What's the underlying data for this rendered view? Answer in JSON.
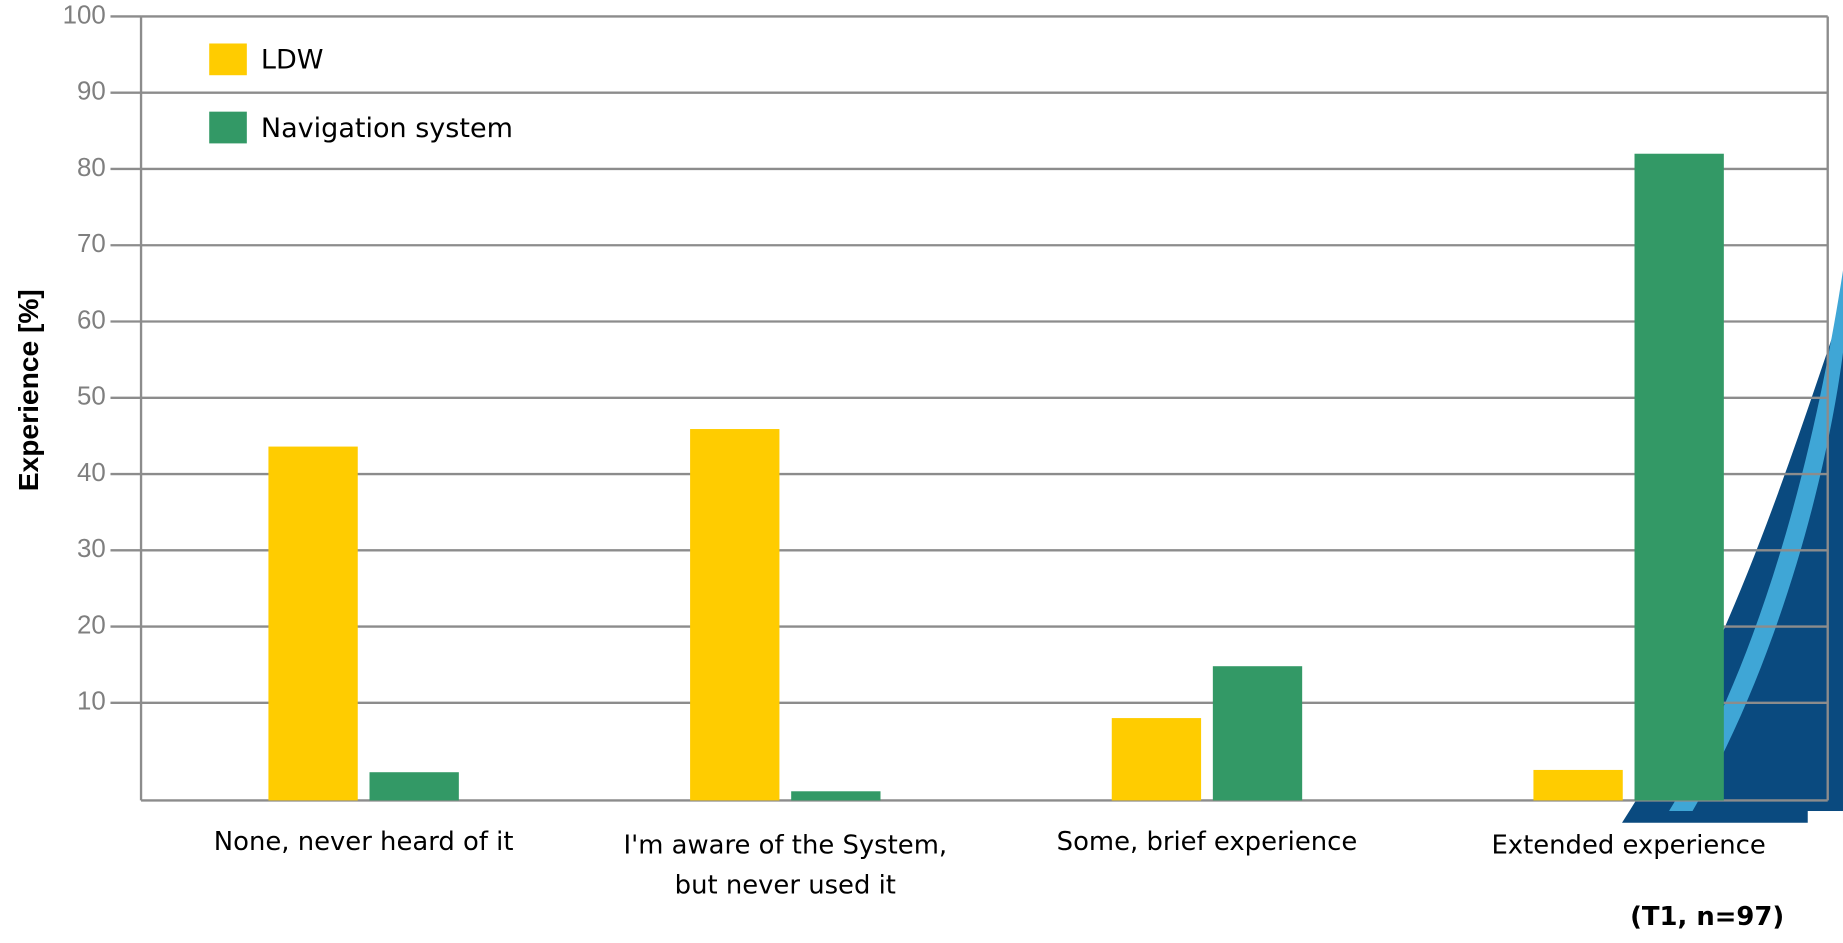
{
  "chart_data": {
    "type": "bar",
    "y_label": "Experience [%]",
    "annotation": "(T1, n=97)",
    "categories": [
      "None, never heard of it",
      "I'm aware of the System,\nbut never used it",
      "Some, brief experience",
      "Extended experience"
    ],
    "series": [
      {
        "name": "LDW",
        "color": "#ffcc00",
        "values": [
          43.6,
          45.9,
          8.0,
          1.2
        ]
      },
      {
        "name": "Navigation system",
        "color": "#339966",
        "values": [
          0.9,
          -1.6,
          14.8,
          82.0
        ]
      }
    ],
    "ylim": [
      -2.8,
      100
    ],
    "yticks": [
      10,
      20,
      30,
      40,
      50,
      60,
      70,
      80,
      90,
      100
    ],
    "grid": true,
    "legend": "top-left"
  }
}
